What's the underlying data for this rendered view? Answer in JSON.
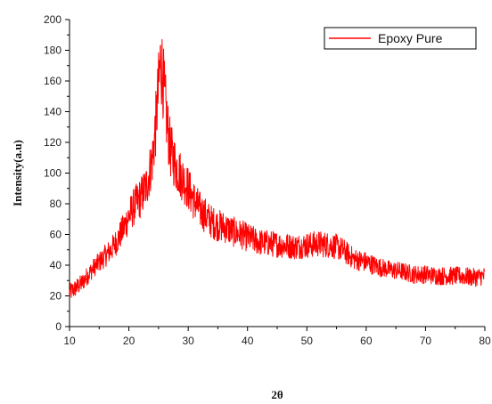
{
  "chart_data": {
    "type": "line",
    "xlabel": "2θ",
    "ylabel": "Intensity(a.u)",
    "xlim": [
      10,
      80
    ],
    "ylim": [
      0,
      200
    ],
    "x_ticks": [
      10,
      20,
      30,
      40,
      50,
      60,
      70,
      80
    ],
    "y_ticks": [
      0,
      20,
      40,
      60,
      80,
      100,
      120,
      140,
      160,
      180,
      200
    ],
    "grid": false,
    "legend_position": "top-right",
    "colors": {
      "series": "#ff0000",
      "axis": "#000000"
    },
    "series": [
      {
        "name": "Epoxy Pure",
        "color": "#ff0000",
        "x": [
          10,
          11,
          12,
          13,
          14,
          15,
          16,
          17,
          18,
          19,
          20,
          21,
          22,
          23,
          24,
          24.5,
          25,
          25.3,
          25.6,
          26,
          26.5,
          27,
          28,
          29,
          30,
          31,
          32,
          33,
          34,
          35,
          36,
          37,
          38,
          39,
          40,
          42,
          44,
          46,
          48,
          50,
          52,
          54,
          55,
          56,
          57,
          58,
          60,
          62,
          64,
          66,
          68,
          70,
          72,
          74,
          76,
          78,
          80
        ],
        "y": [
          22,
          25,
          28,
          33,
          38,
          42,
          46,
          50,
          56,
          63,
          72,
          79,
          84,
          92,
          110,
          130,
          155,
          172,
          168,
          150,
          130,
          115,
          104,
          97,
          90,
          82,
          76,
          72,
          68,
          66,
          65,
          63,
          61,
          60,
          58,
          55,
          54,
          53,
          52,
          53,
          54,
          53,
          52,
          50,
          47,
          44,
          42,
          39,
          37,
          36,
          34,
          34,
          33,
          33,
          33,
          32,
          33
        ]
      }
    ]
  }
}
